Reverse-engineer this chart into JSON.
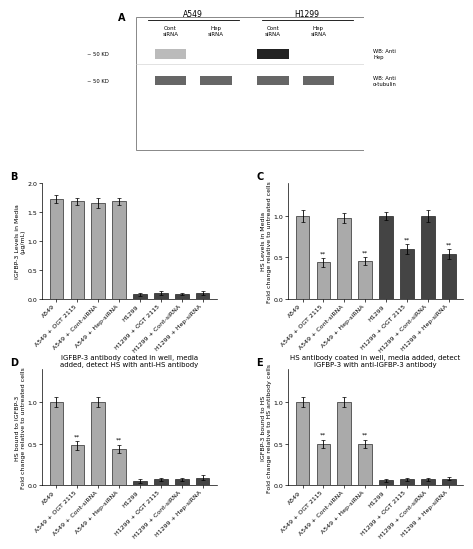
{
  "panel_A": {
    "label": "A"
  },
  "panel_B": {
    "label": "B",
    "ylabel": "IGFBP-3 Levels in Media\n(μg/mL)",
    "ylim": [
      0,
      2.0
    ],
    "yticks": [
      0.0,
      0.5,
      1.0,
      1.5,
      2.0
    ],
    "categories": [
      "A549",
      "A549 + OGT 2115",
      "A549 + Cont-siRNA",
      "A549 + Hep-siRNA",
      "H1299",
      "H1299 + OGT 2115",
      "H1299 + Cont-siRNA",
      "H1299 + Hep-siRNA"
    ],
    "values": [
      1.72,
      1.68,
      1.65,
      1.68,
      0.08,
      0.1,
      0.09,
      0.1
    ],
    "errors": [
      0.07,
      0.06,
      0.08,
      0.06,
      0.02,
      0.03,
      0.02,
      0.03
    ],
    "colors": [
      "#aaaaaa",
      "#aaaaaa",
      "#aaaaaa",
      "#aaaaaa",
      "#444444",
      "#444444",
      "#444444",
      "#444444"
    ],
    "significance": [
      false,
      false,
      false,
      false,
      false,
      false,
      false,
      false
    ]
  },
  "panel_C": {
    "label": "C",
    "ylabel": "HS Levels in Media\nFold change relative to untreated cells",
    "ylim": [
      0,
      1.4
    ],
    "yticks": [
      0.0,
      0.5,
      1.0
    ],
    "categories": [
      "A549",
      "A549 + OGT 2115",
      "A549 + Cont-siRNA",
      "A549 + Hep-siRNA",
      "H1299",
      "H1299 + OGT 2115",
      "H1299 + Cont-siRNA",
      "H1299 + Hep-siRNA"
    ],
    "values": [
      1.0,
      0.44,
      0.97,
      0.46,
      1.0,
      0.6,
      1.0,
      0.54
    ],
    "errors": [
      0.07,
      0.05,
      0.06,
      0.05,
      0.05,
      0.06,
      0.07,
      0.06
    ],
    "colors": [
      "#aaaaaa",
      "#aaaaaa",
      "#aaaaaa",
      "#aaaaaa",
      "#444444",
      "#444444",
      "#444444",
      "#444444"
    ],
    "significance": [
      false,
      true,
      false,
      true,
      false,
      true,
      false,
      true
    ]
  },
  "panel_D": {
    "label": "D",
    "title": "IGFBP-3 antibody coated in well, media\nadded, detect HS with anti-HS antibody",
    "ylabel": "HS bound to IGFBP-3\nFold change relative to untreated cells",
    "ylim": [
      0,
      1.4
    ],
    "yticks": [
      0.0,
      0.5,
      1.0
    ],
    "categories": [
      "A549",
      "A549 + OGT 2115",
      "A549 + Cont-siRNA",
      "A549 + Hep-siRNA",
      "H1299",
      "H1299 + OGT 2115",
      "H1299 + Cont-siRNA",
      "H1299 + Hep-siRNA"
    ],
    "values": [
      1.0,
      0.48,
      1.0,
      0.44,
      0.05,
      0.07,
      0.07,
      0.09
    ],
    "errors": [
      0.06,
      0.05,
      0.06,
      0.05,
      0.02,
      0.02,
      0.02,
      0.03
    ],
    "colors": [
      "#aaaaaa",
      "#aaaaaa",
      "#aaaaaa",
      "#aaaaaa",
      "#444444",
      "#444444",
      "#444444",
      "#444444"
    ],
    "significance": [
      false,
      true,
      false,
      true,
      false,
      false,
      false,
      false
    ]
  },
  "panel_E": {
    "label": "E",
    "title": "HS antibody coated in well, media added, detect\nIGFBP-3 with anti-IGFBP-3 antibody",
    "ylabel": "IGFBP-3 bound to HS\nFold change relative to HS antibody cells",
    "ylim": [
      0,
      1.4
    ],
    "yticks": [
      0.0,
      0.5,
      1.0
    ],
    "categories": [
      "A549",
      "A549 + OGT 2115",
      "A549 + Cont-siRNA",
      "A549 + Hep-siRNA",
      "H1299",
      "H1299 + OGT 2115",
      "H1299 + Cont-siRNA",
      "H1299 + Hep-siRNA"
    ],
    "values": [
      1.0,
      0.5,
      1.0,
      0.5,
      0.06,
      0.07,
      0.07,
      0.08
    ],
    "errors": [
      0.06,
      0.05,
      0.06,
      0.05,
      0.02,
      0.02,
      0.02,
      0.02
    ],
    "colors": [
      "#aaaaaa",
      "#aaaaaa",
      "#aaaaaa",
      "#aaaaaa",
      "#444444",
      "#444444",
      "#444444",
      "#444444"
    ],
    "significance": [
      false,
      true,
      false,
      true,
      false,
      false,
      false,
      false
    ]
  },
  "fig_bg": "#ffffff",
  "bar_width": 0.65,
  "capsize": 1.5,
  "fontsize_label": 4.5,
  "fontsize_tick": 4.5,
  "fontsize_title": 5.0,
  "fontsize_panel": 7
}
